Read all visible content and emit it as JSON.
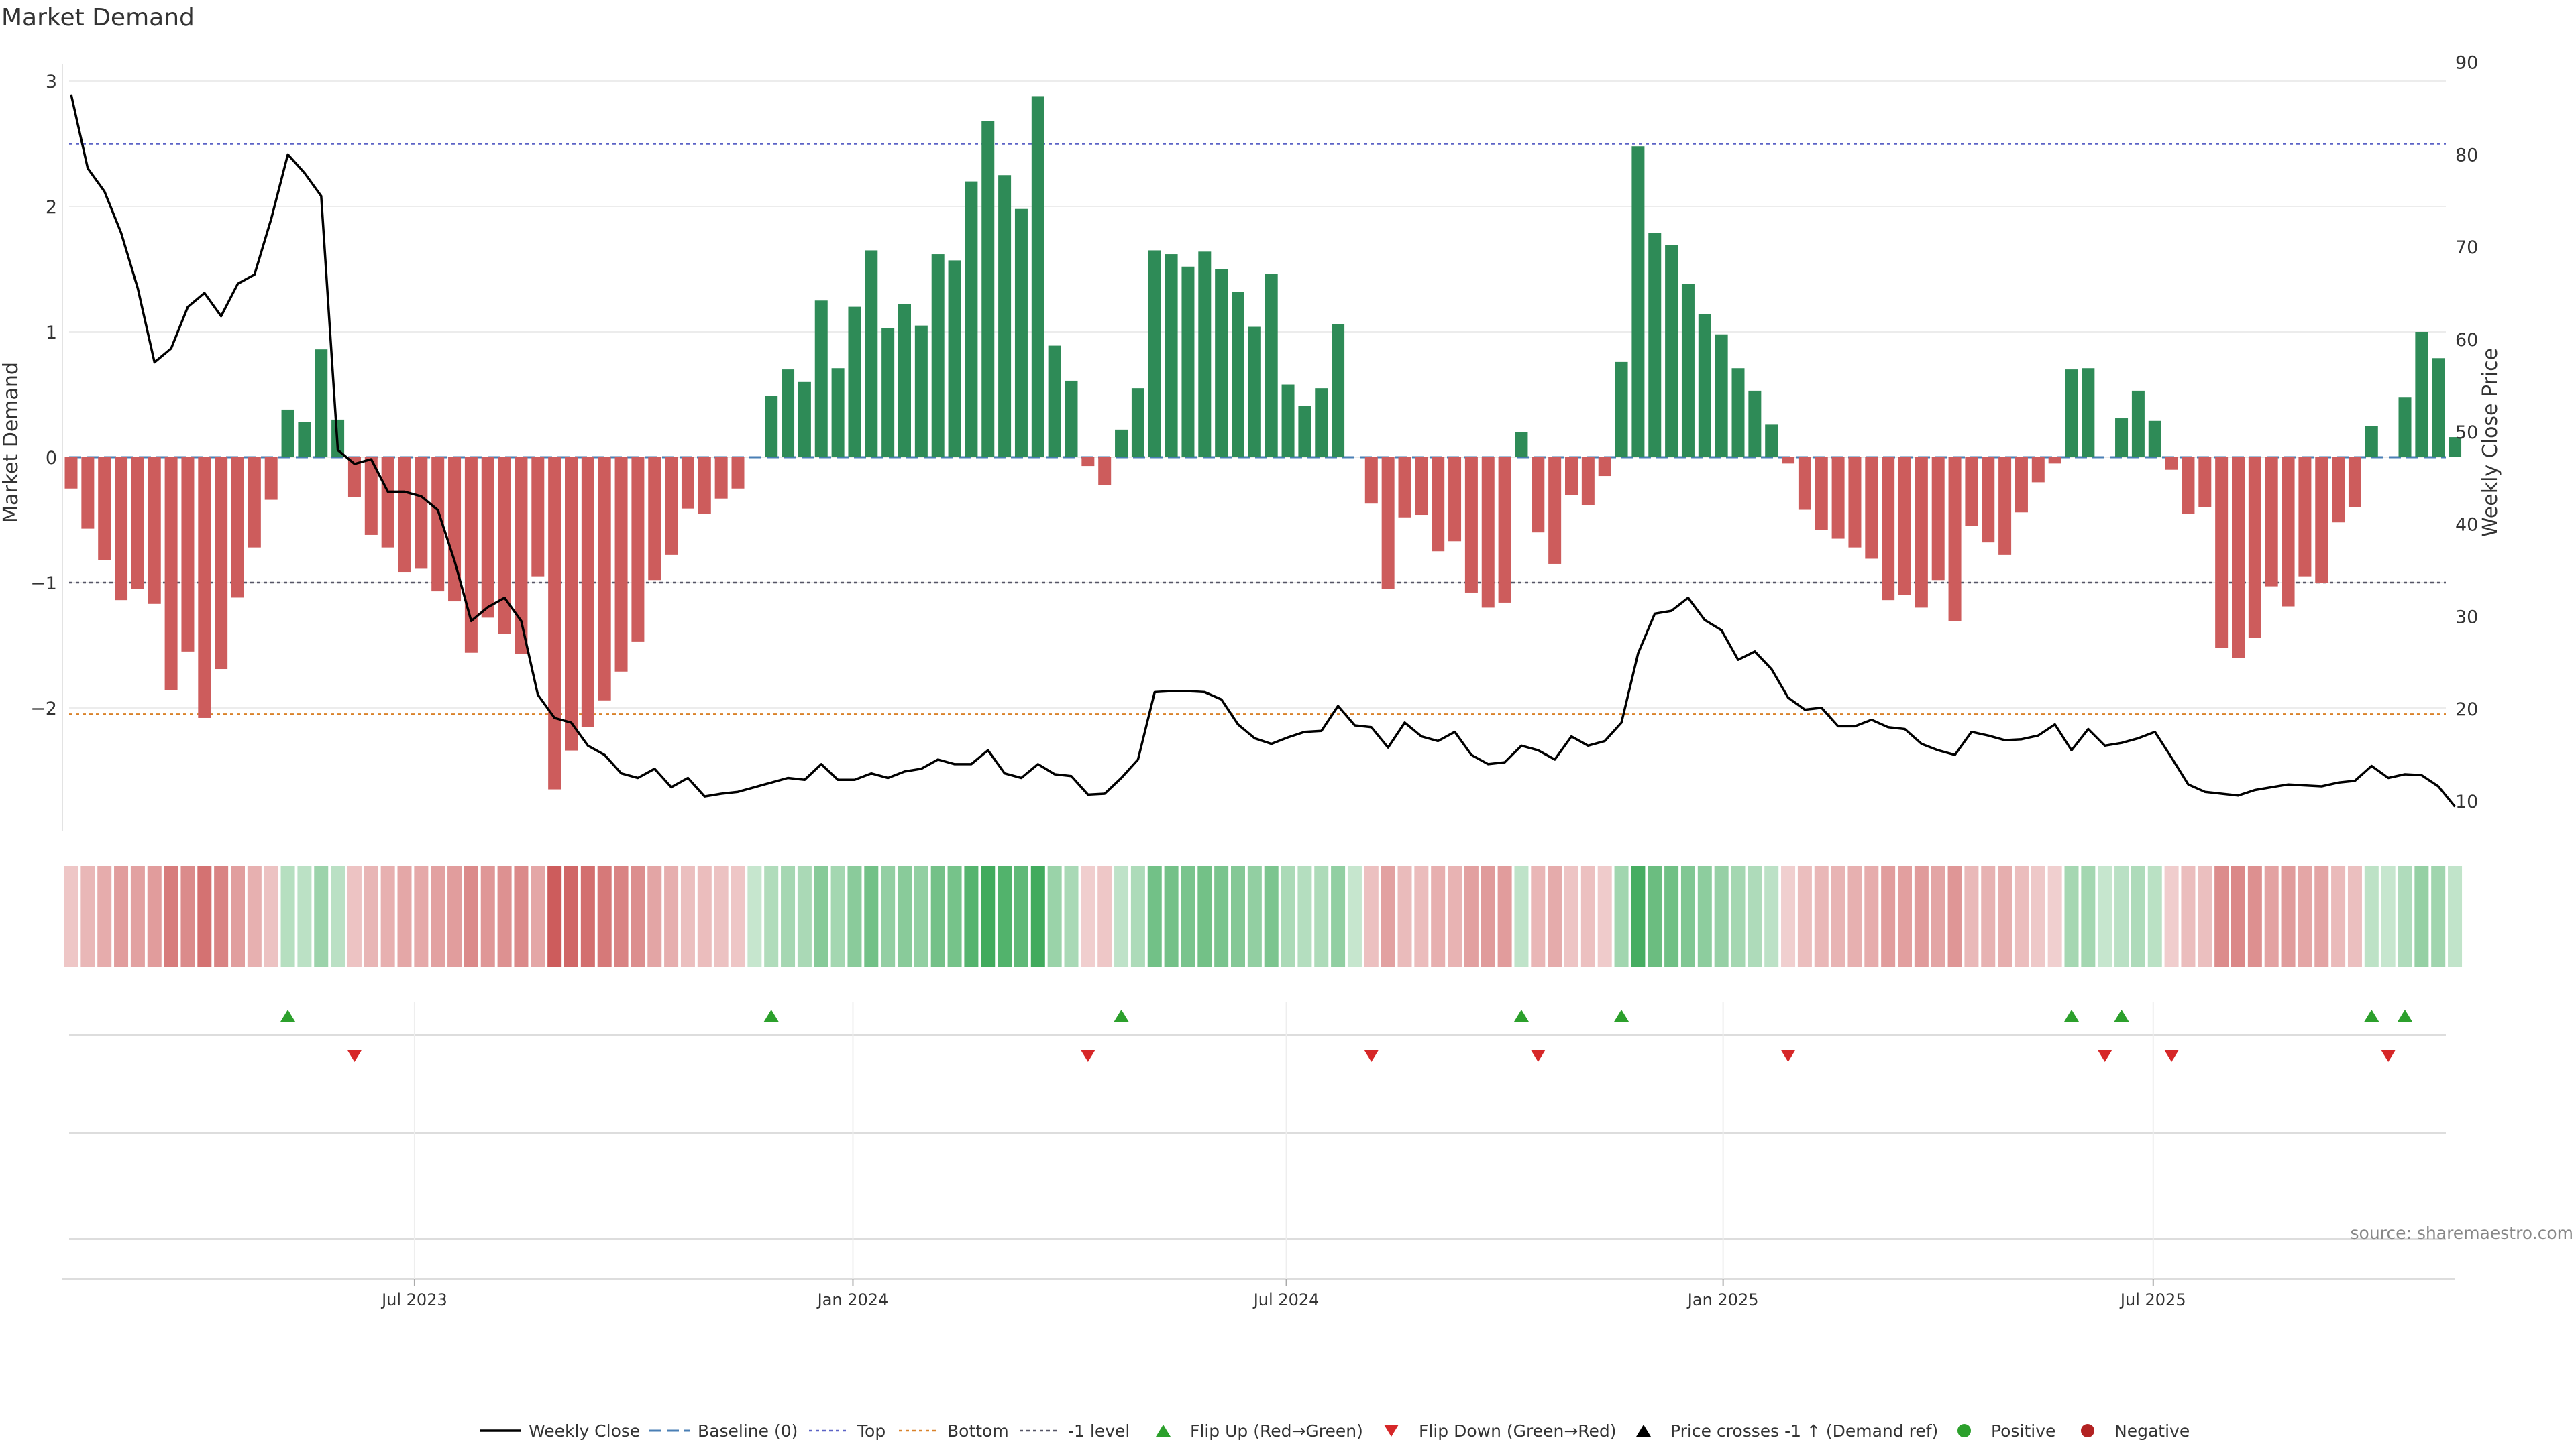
{
  "chart_data": {
    "type": "bar",
    "title": "Market Demand",
    "ylabel": "Market Demand",
    "y2label": "Weekly Close Price",
    "ylim": [
      -3.0,
      3.0
    ],
    "y2lim": [
      10,
      90
    ],
    "yticks": [
      -2,
      -1,
      0,
      1,
      2,
      3
    ],
    "ytick_labels": [
      "−2",
      "−1",
      "0",
      "1",
      "2",
      "3"
    ],
    "y2ticks": [
      10,
      20,
      30,
      40,
      50,
      60,
      70,
      80,
      90
    ],
    "x_months": [
      "Jul 2023",
      "Jan 2024",
      "Jul 2024",
      "Jan 2025",
      "Jul 2025"
    ],
    "x_month_weeks": [
      20.6,
      46.9,
      72.9,
      99.1,
      124.9
    ],
    "reference_lines": {
      "top": 2.5,
      "bottom": -2.05,
      "minus_one": -1.0,
      "baseline": 0.0
    },
    "demand": [
      -0.25,
      -0.57,
      -0.82,
      -1.14,
      -1.05,
      -1.17,
      -1.86,
      -1.55,
      -2.08,
      -1.69,
      -1.12,
      -0.72,
      -0.34,
      0.38,
      0.28,
      0.86,
      0.3,
      -0.32,
      -0.62,
      -0.72,
      -0.92,
      -0.89,
      -1.07,
      -1.15,
      -1.56,
      -1.28,
      -1.41,
      -1.57,
      -0.95,
      -2.65,
      -2.34,
      -2.15,
      -1.94,
      -1.71,
      -1.47,
      -0.98,
      -0.78,
      -0.41,
      -0.45,
      -0.33,
      -0.25,
      0,
      0.49,
      0.7,
      0.6,
      1.25,
      0.71,
      1.2,
      1.65,
      1.03,
      1.22,
      1.05,
      1.62,
      1.57,
      2.2,
      2.68,
      2.25,
      1.98,
      2.88,
      0.89,
      0.61,
      -0.07,
      -0.22,
      0.22,
      0.55,
      1.65,
      1.62,
      1.52,
      1.64,
      1.5,
      1.32,
      1.04,
      1.46,
      0.58,
      0.41,
      0.55,
      1.06,
      0,
      -0.37,
      -1.05,
      -0.48,
      -0.46,
      -0.75,
      -0.67,
      -1.08,
      -1.2,
      -1.16,
      0.2,
      -0.6,
      -0.85,
      -0.3,
      -0.38,
      -0.15,
      0.76,
      2.48,
      1.79,
      1.69,
      1.38,
      1.14,
      0.98,
      0.71,
      0.53,
      0.26,
      -0.05,
      -0.42,
      -0.58,
      -0.65,
      -0.72,
      -0.81,
      -1.14,
      -1.1,
      -1.2,
      -0.98,
      -1.31,
      -0.55,
      -0.68,
      -0.78,
      -0.44,
      -0.2,
      -0.05,
      0.7,
      0.71,
      0,
      0.31,
      0.53,
      0.29,
      -0.1,
      -0.45,
      -0.4,
      -1.52,
      -1.6,
      -1.44,
      -1.03,
      -1.19,
      -0.95,
      -1.0,
      -0.52,
      -0.4,
      0.25,
      0,
      0.48,
      1.0,
      0.79,
      0.16
    ],
    "weekly_close": [
      86.5,
      78.5,
      76,
      71.5,
      65.5,
      57.5,
      59,
      63.5,
      65,
      62.5,
      66,
      67,
      73,
      80,
      78,
      75.5,
      48,
      46.5,
      47,
      43.5,
      43.5,
      43,
      41.5,
      36,
      29.5,
      31,
      32,
      29.5,
      21.5,
      19,
      18.5,
      16,
      15,
      13,
      12.5,
      13.5,
      11.5,
      12.5,
      10.5,
      10.8,
      11,
      11.5,
      12,
      12.5,
      12.3,
      14,
      12.3,
      12.3,
      13,
      12.5,
      13.2,
      13.5,
      14.5,
      14,
      14,
      15.5,
      13,
      12.5,
      14,
      12.9,
      12.7,
      10.7,
      10.8,
      12.5,
      14.5,
      21.8,
      21.9,
      21.9,
      21.8,
      21,
      18.3,
      16.8,
      16.2,
      16.9,
      17.5,
      17.6,
      20.3,
      18.2,
      18,
      15.8,
      18.5,
      17,
      16.5,
      17.5,
      15,
      14,
      14.2,
      16,
      15.5,
      14.5,
      17,
      16,
      16.5,
      18.5,
      26,
      30.3,
      30.6,
      32,
      29.6,
      28.5,
      25.3,
      26.2,
      24.3,
      21.2,
      19.9,
      20.1,
      18.1,
      18.1,
      18.8,
      18,
      17.8,
      16.2,
      15.5,
      15,
      17.5,
      17.1,
      16.6,
      16.7,
      17.1,
      18.3,
      15.5,
      17.8,
      16,
      16.3,
      16.8,
      17.5,
      14.7,
      11.8,
      11,
      10.8,
      10.6,
      11.2,
      11.5,
      11.8,
      11.7,
      11.6,
      12,
      12.2,
      13.8,
      12.5,
      12.9,
      12.8,
      11.6,
      9.4
    ],
    "flip_up_weeks": [
      13,
      42,
      63,
      87,
      93,
      120,
      123,
      138,
      140
    ],
    "flip_down_weeks": [
      17,
      61,
      78,
      88,
      103,
      122,
      126,
      139
    ],
    "legend": {
      "weekly_close": "Weekly Close",
      "baseline": "Baseline (0)",
      "top": "Top",
      "bottom": "Bottom",
      "minus_one": "-1 level",
      "flip_up": "Flip Up (Red→Green)",
      "flip_down": "Flip Down (Green→Red)",
      "price_cross": "Price crosses -1 ↑ (Demand ref)",
      "positive": "Positive",
      "negative": "Negative"
    },
    "source": "source: sharemaestro.com",
    "colors": {
      "positive": "#2e8b57",
      "negative": "#cd5c5c",
      "price": "#000000",
      "top": "#5c63c6",
      "bottom": "#d9822b",
      "minus_one": "#555566",
      "baseline": "#4a7fb5",
      "flip_up": "#2ca02c",
      "flip_down": "#d62728",
      "positive_dot": "#2ca02c",
      "negative_dot": "#b22222"
    }
  }
}
